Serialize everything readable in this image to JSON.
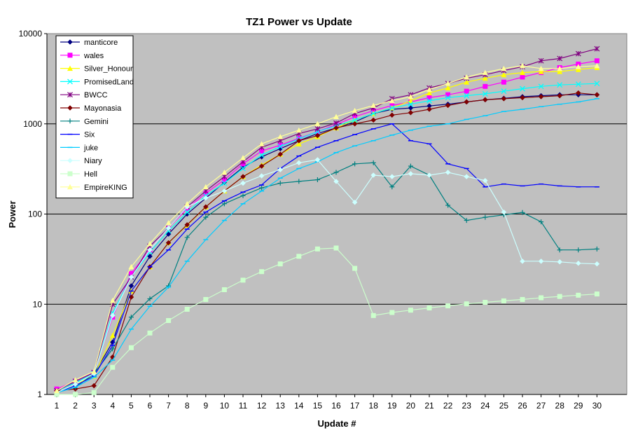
{
  "chart_data": {
    "type": "line",
    "title": "TZ1 Power vs Update",
    "xlabel": "Update #",
    "ylabel": "Power",
    "y_scale": "log",
    "ylim": [
      1,
      10000
    ],
    "y_ticks": [
      1,
      10,
      100,
      1000,
      10000
    ],
    "y_tick_labels": [
      "1",
      "10",
      "100",
      "1000",
      "10000"
    ],
    "grid": "horizontal major gridlines",
    "legend_position": "top-left",
    "plot_background": "#c0c0c0",
    "x": [
      1,
      2,
      3,
      4,
      5,
      6,
      7,
      8,
      9,
      10,
      11,
      12,
      13,
      14,
      15,
      16,
      17,
      18,
      19,
      20,
      21,
      22,
      23,
      24,
      25,
      26,
      27,
      28,
      29,
      30
    ],
    "series": [
      {
        "name": "manticore",
        "color": "#000080",
        "marker": "diamond",
        "values": [
          1.1,
          1.35,
          1.7,
          3.8,
          16,
          34,
          60,
          100,
          150,
          225,
          330,
          430,
          530,
          650,
          780,
          900,
          1050,
          1300,
          1450,
          1500,
          1580,
          1650,
          1750,
          1850,
          1920,
          2000,
          2050,
          2100,
          2100,
          2100
        ]
      },
      {
        "name": "wales",
        "color": "#ff00ff",
        "marker": "square",
        "values": [
          1.15,
          1.4,
          1.75,
          7.2,
          22,
          40,
          70,
          115,
          170,
          240,
          360,
          500,
          580,
          690,
          820,
          980,
          1200,
          1400,
          1600,
          1750,
          1950,
          2100,
          2300,
          2600,
          2900,
          3300,
          3700,
          4200,
          4600,
          5000
        ]
      },
      {
        "name": "Silver_Honour",
        "color": "#ffff00",
        "marker": "triangle",
        "values": [
          1.05,
          1.3,
          1.6,
          4.5,
          14,
          26,
          48,
          75,
          120,
          180,
          260,
          350,
          460,
          600,
          720,
          900,
          1100,
          1300,
          1500,
          1800,
          2200,
          2500,
          2900,
          3200,
          3500,
          3700,
          3800,
          3800,
          4000,
          4200
        ]
      },
      {
        "name": "PromisedLand",
        "color": "#00ffff",
        "marker": "x",
        "values": [
          1.1,
          1.35,
          1.7,
          8,
          20,
          38,
          65,
          105,
          160,
          220,
          320,
          450,
          560,
          680,
          820,
          950,
          1100,
          1300,
          1500,
          1650,
          1800,
          1950,
          2050,
          2150,
          2300,
          2450,
          2600,
          2700,
          2750,
          2800
        ]
      },
      {
        "name": "BWCC",
        "color": "#800080",
        "marker": "star",
        "values": [
          1.1,
          1.4,
          1.75,
          10,
          20,
          44,
          70,
          120,
          180,
          260,
          380,
          550,
          650,
          780,
          880,
          1020,
          1300,
          1500,
          1900,
          2100,
          2500,
          2800,
          3200,
          3500,
          3900,
          4300,
          5000,
          5300,
          6000,
          6800
        ]
      },
      {
        "name": "Mayonasia",
        "color": "#800000",
        "marker": "diamond",
        "values": [
          1.1,
          1.15,
          1.25,
          2.6,
          12,
          26,
          48,
          76,
          120,
          180,
          260,
          340,
          460,
          650,
          740,
          900,
          1000,
          1100,
          1250,
          1330,
          1450,
          1600,
          1750,
          1850,
          1900,
          1950,
          2000,
          2050,
          2200,
          2100
        ]
      },
      {
        "name": "Gemini",
        "color": "#008080",
        "marker": "plus",
        "values": [
          1.05,
          1.2,
          1.7,
          3.2,
          7.2,
          11.5,
          16,
          55,
          92,
          130,
          160,
          195,
          220,
          230,
          240,
          290,
          360,
          370,
          200,
          340,
          270,
          125,
          85,
          92,
          98,
          104,
          82,
          40,
          40,
          41
        ]
      },
      {
        "name": "Six",
        "color": "#0000ff",
        "marker": "dash",
        "values": [
          1.05,
          1.25,
          1.6,
          3.5,
          14,
          26,
          40,
          68,
          105,
          140,
          175,
          210,
          320,
          440,
          550,
          650,
          760,
          880,
          1000,
          650,
          600,
          360,
          320,
          200,
          215,
          205,
          215,
          205,
          200,
          200
        ]
      },
      {
        "name": "juke",
        "color": "#00ccff",
        "marker": "dash",
        "values": [
          1.05,
          1.2,
          1.55,
          2.4,
          5.3,
          9.5,
          15.5,
          30,
          52,
          85,
          130,
          180,
          250,
          320,
          380,
          480,
          570,
          650,
          750,
          850,
          940,
          1000,
          1120,
          1230,
          1370,
          1450,
          1550,
          1650,
          1750,
          1900
        ]
      },
      {
        "name": "Niary",
        "color": "#ccffff",
        "marker": "diamond",
        "values": [
          1.05,
          1.3,
          1.7,
          7.5,
          20,
          40,
          70,
          120,
          150,
          180,
          220,
          265,
          310,
          370,
          400,
          230,
          135,
          270,
          260,
          280,
          270,
          290,
          260,
          235,
          105,
          30,
          30,
          29.5,
          28.5,
          28
        ]
      },
      {
        "name": "Hell",
        "color": "#ccffcc",
        "marker": "square",
        "values": [
          1.0,
          1.0,
          1.05,
          2.0,
          3.3,
          4.8,
          6.6,
          8.8,
          11.3,
          14.5,
          18.5,
          23,
          28,
          34,
          41,
          42,
          25,
          7.5,
          8.1,
          8.6,
          9.1,
          9.6,
          10.1,
          10.5,
          10.9,
          11.3,
          11.8,
          12.2,
          12.6,
          13
        ]
      },
      {
        "name": "EmpireKING",
        "color": "#ffff99",
        "marker": "triangle",
        "values": [
          1.1,
          1.45,
          1.8,
          11,
          26,
          47,
          80,
          130,
          200,
          290,
          420,
          600,
          720,
          850,
          1000,
          1200,
          1400,
          1600,
          1800,
          2000,
          2400,
          2800,
          3300,
          3700,
          4100,
          4400,
          4100,
          4100,
          4300,
          4400
        ]
      }
    ]
  }
}
